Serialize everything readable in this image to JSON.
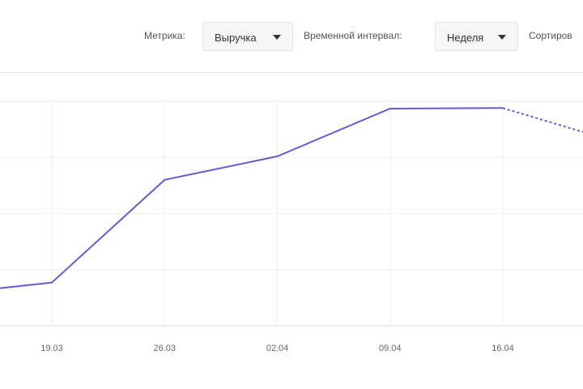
{
  "toolbar": {
    "metric_label": "Метрика:",
    "metric_value": "Выручка",
    "interval_label": "Временной интервал:",
    "interval_value": "Неделя",
    "sort_label": "Сортиров"
  },
  "chart_data": {
    "type": "line",
    "categories": [
      null,
      "19.03",
      "26.03",
      "02.04",
      "09.04",
      "16.04",
      null
    ],
    "values": [
      0.55,
      0.77,
      2.6,
      3.02,
      3.87,
      3.88,
      3.28
    ],
    "color": "#6f55d6",
    "dash_last_segment": true,
    "ylim": [
      0,
      4
    ],
    "yticks": [
      0,
      1,
      2,
      3,
      4
    ],
    "grid": true
  }
}
